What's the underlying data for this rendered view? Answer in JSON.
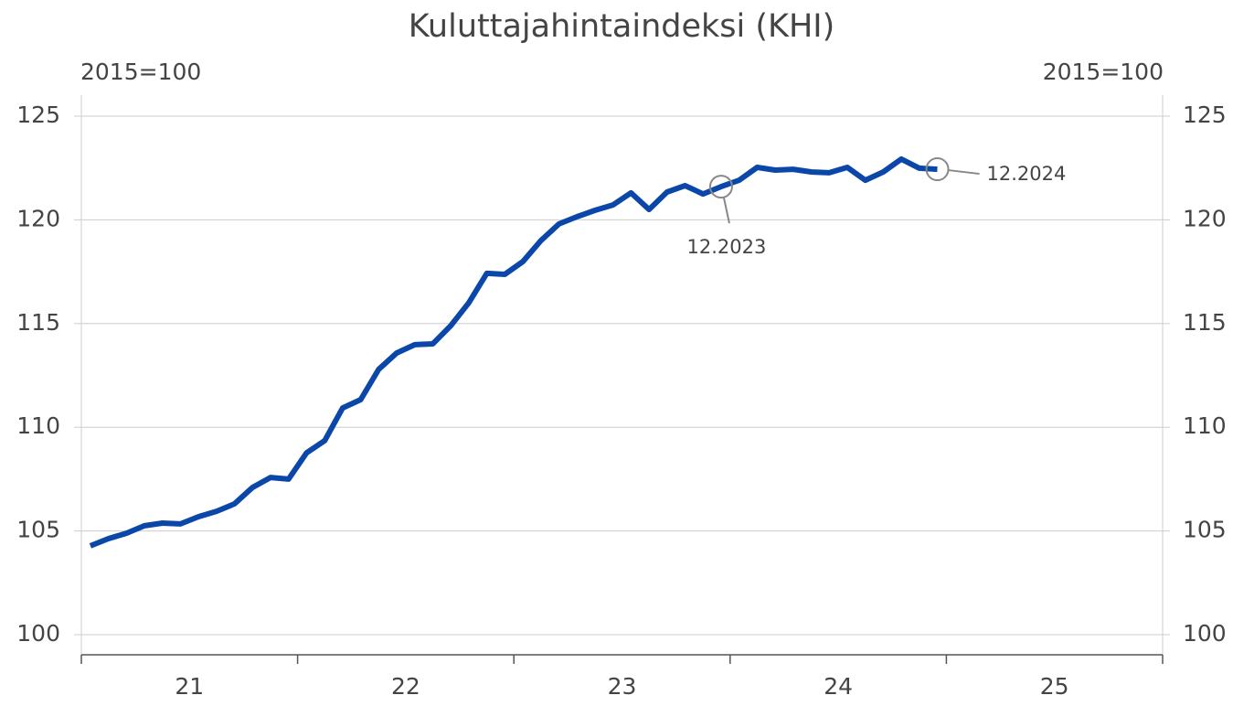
{
  "chart_data": {
    "type": "line",
    "title": "Kuluttajahintaindeksi (KHI)",
    "y_label": "2015=100",
    "y2_label": "2015=100",
    "xlabels": [
      "21",
      "22",
      "23",
      "24",
      "25"
    ],
    "series": [
      {
        "name": "KHI",
        "color": "#0a47a9",
        "values": [
          104.28,
          104.63,
          104.89,
          105.25,
          105.38,
          105.34,
          105.69,
          105.95,
          106.31,
          107.1,
          107.58,
          107.5,
          108.77,
          109.35,
          110.93,
          111.33,
          112.79,
          113.58,
          113.98,
          114.02,
          114.9,
          116.0,
          117.42,
          117.37,
          117.99,
          119.0,
          119.8,
          120.15,
          120.46,
          120.72,
          121.3,
          120.5,
          121.34,
          121.65,
          121.25,
          121.6,
          121.91,
          122.53,
          122.4,
          122.44,
          122.31,
          122.27,
          122.53,
          121.91,
          122.31,
          122.93,
          122.49,
          122.44
        ]
      }
    ],
    "annotations": [
      {
        "label": "12.2023",
        "index": 35,
        "side": "below"
      },
      {
        "label": "12.2024",
        "index": 47,
        "side": "right"
      }
    ],
    "ylim": [
      99,
      126
    ],
    "yticks": [
      100,
      105,
      110,
      115,
      120,
      125
    ],
    "y2lim": [
      99,
      126
    ],
    "y2ticks": [
      100,
      105,
      110,
      115,
      120,
      125
    ],
    "grid": true
  }
}
